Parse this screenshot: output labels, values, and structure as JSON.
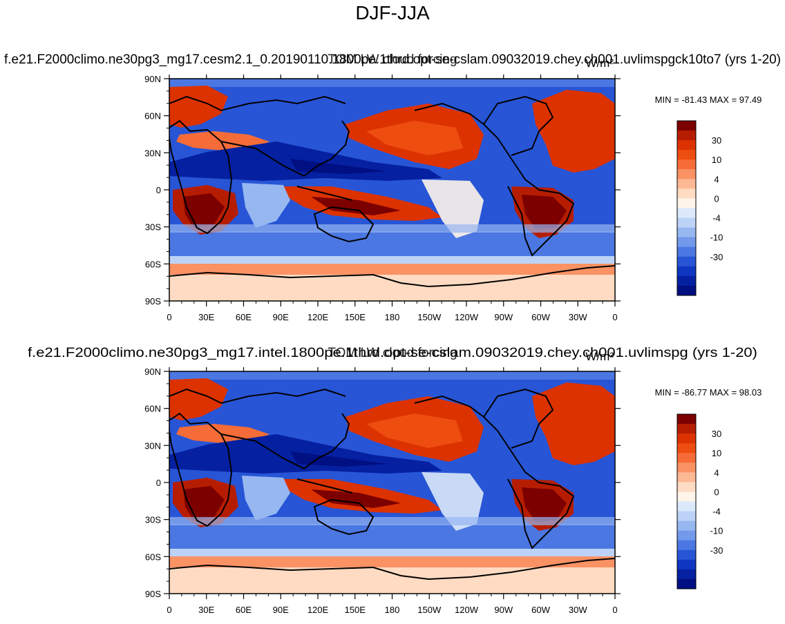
{
  "figure": {
    "title": "DJF-JJA"
  },
  "panels": [
    {
      "case_name": "f.e21.F2000climo.ne30pg3_mg17.cesm2.1_0.20190110.1800pe.1thrd.opt-se-cslam.09032019.chey.ch001.uvlimspgck10to7 (yrs 1-20)",
      "variable_name": "TOM LW cloud forcing",
      "units": "W/m²",
      "stats": "MIN = -81.43 MAX =  97.49",
      "x_ticks": [
        "0",
        "30E",
        "60E",
        "90E",
        "120E",
        "150E",
        "180",
        "150W",
        "120W",
        "90W",
        "60W",
        "30W",
        "0"
      ],
      "y_ticks": [
        "90N",
        "60N",
        "30N",
        "0",
        "30S",
        "60S",
        "90S"
      ],
      "colorbar_labels": [
        "30",
        "10",
        "4",
        "0",
        "-4",
        "-10",
        "-30"
      ]
    },
    {
      "case_name": "f.e21.F2000climo.ne30pg3_mg17.intel.1800pe.1thrd.opt-se-cslam.09032019.chey.ch001.uvlimspg (yrs 1-20)",
      "variable_name": "TOM LW cloud forcing",
      "units": "W/m²",
      "stats": "MIN = -86.77 MAX =  98.03",
      "x_ticks": [
        "0",
        "30E",
        "60E",
        "90E",
        "120E",
        "150E",
        "180",
        "150W",
        "120W",
        "90W",
        "60W",
        "30W",
        "0"
      ],
      "y_ticks": [
        "90N",
        "60N",
        "30N",
        "0",
        "30S",
        "60S",
        "90S"
      ],
      "colorbar_labels": [
        "30",
        "10",
        "4",
        "0",
        "-4",
        "-10",
        "-30"
      ]
    }
  ],
  "colorbar_colors": [
    "#7d0000",
    "#b61d00",
    "#dc3200",
    "#ee4d10",
    "#f56c38",
    "#fa9264",
    "#fdb894",
    "#fedbc2",
    "#fff4ea",
    "#dbe9fb",
    "#bcd3f7",
    "#97b7f1",
    "#7299ea",
    "#4b77e2",
    "#2755d6",
    "#0e36c2",
    "#0520a0",
    "#000f82"
  ]
}
